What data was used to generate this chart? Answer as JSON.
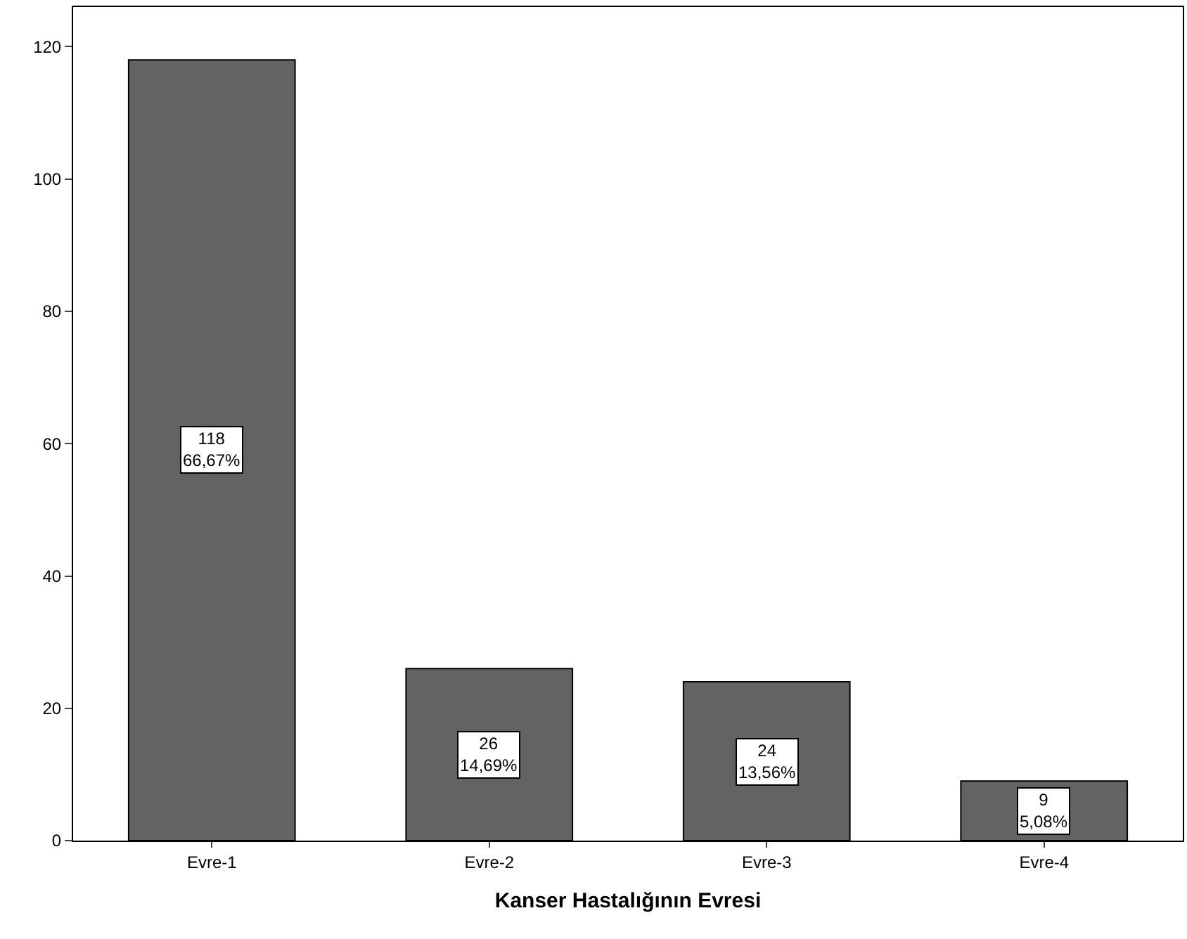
{
  "chart_data": {
    "type": "bar",
    "xlabel": "Kanser Hastalığının Evresi",
    "categories": [
      "Evre-1",
      "Evre-2",
      "Evre-3",
      "Evre-4"
    ],
    "values": [
      118,
      26,
      24,
      9
    ],
    "value_labels": [
      "118\n66,67%",
      "26\n14,69%",
      "24\n13,56%",
      "9\n5,08%"
    ],
    "color": "#636363",
    "ylim": [
      0,
      126
    ],
    "yticks": [
      0,
      20,
      40,
      60,
      80,
      100,
      120
    ],
    "legend": false
  }
}
